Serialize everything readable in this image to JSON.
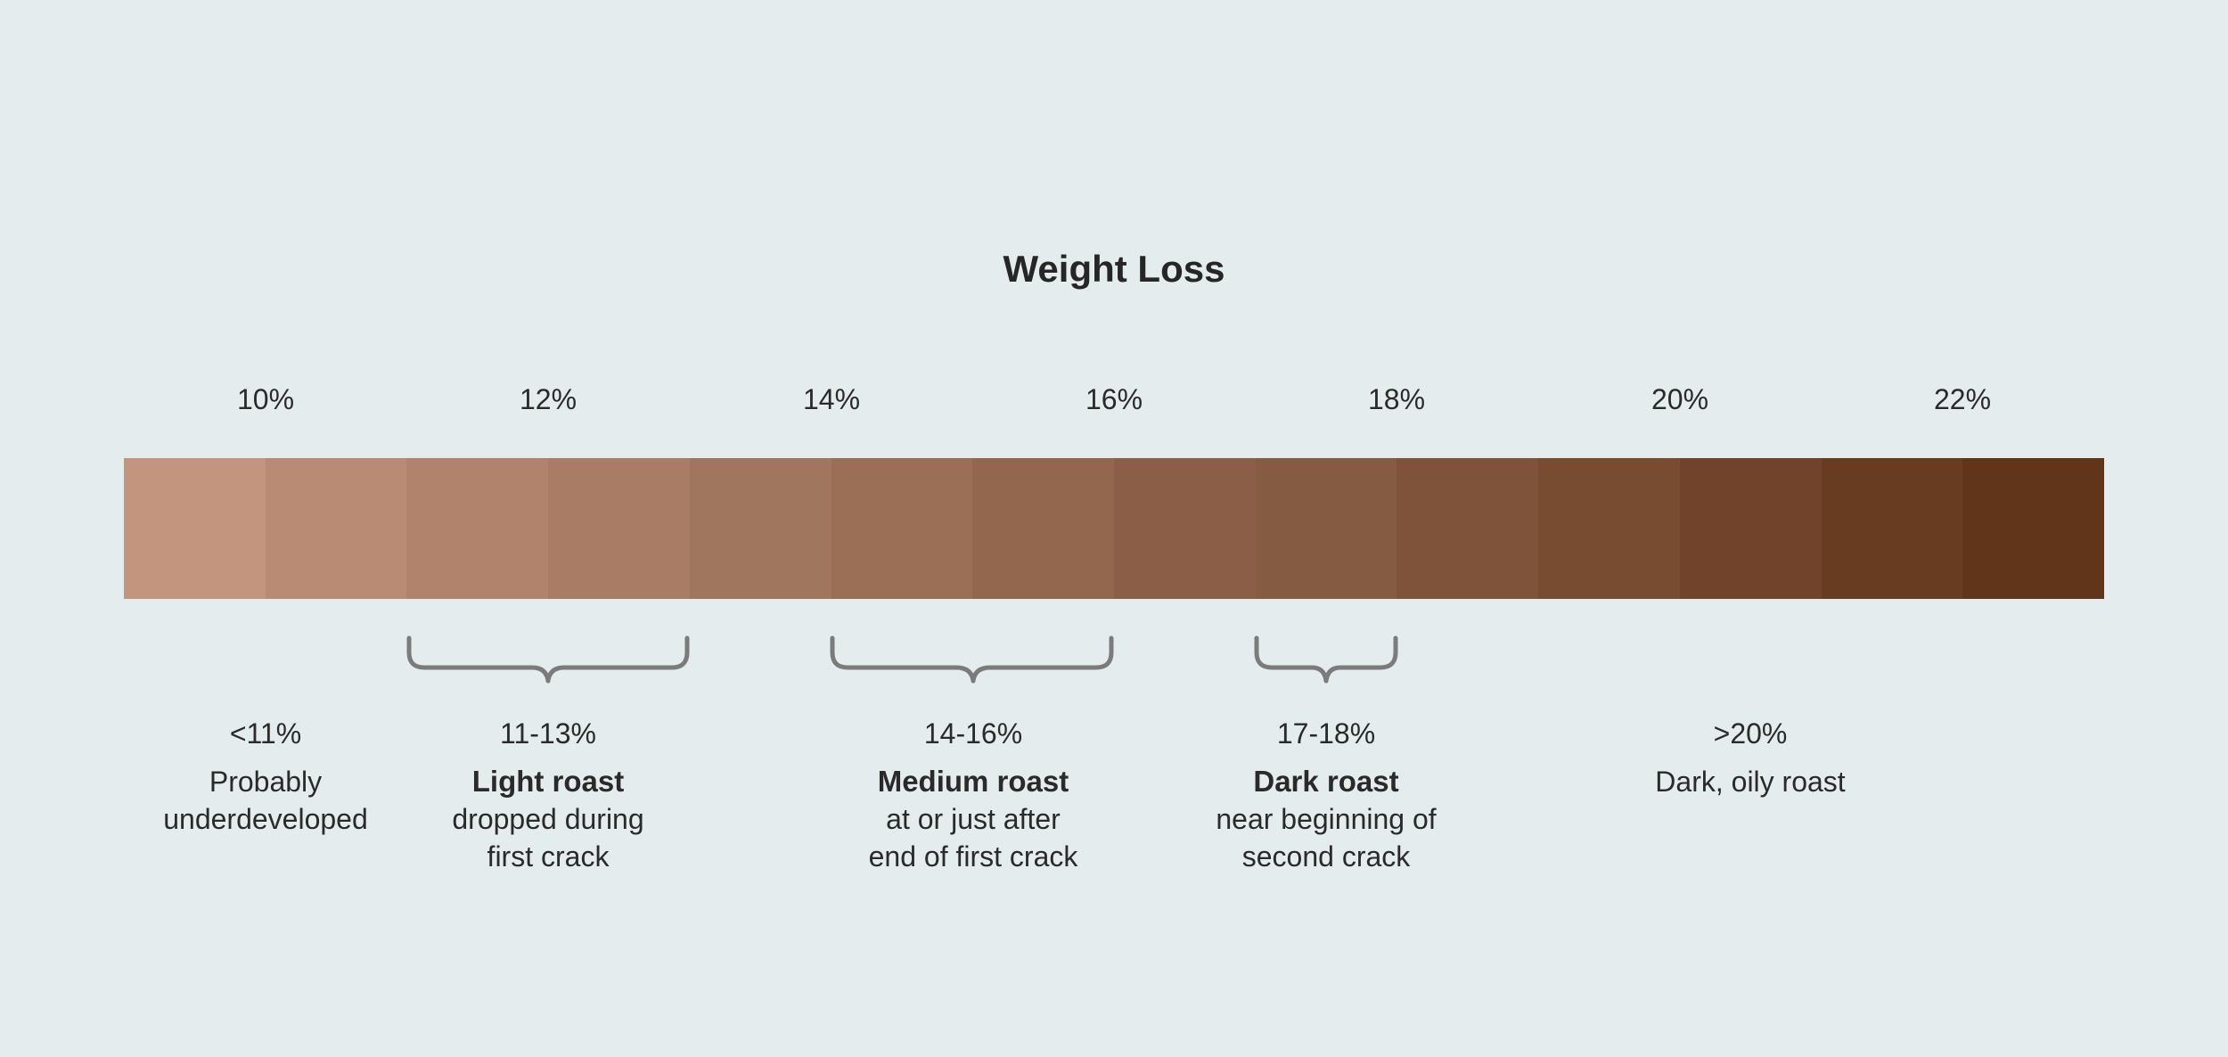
{
  "title": "Weight Loss",
  "ticks": [
    "10%",
    "12%",
    "14%",
    "16%",
    "18%",
    "20%",
    "22%"
  ],
  "swatches": [
    "#c3957f",
    "#b98b75",
    "#b1836c",
    "#a97d65",
    "#a1765e",
    "#9b6e56",
    "#93664e",
    "#8b5f47",
    "#855b41",
    "#7e5339",
    "#784c31",
    "#70432a",
    "#683c21",
    "#613519"
  ],
  "brace_color": "#7b7b7b",
  "braces": [
    {
      "name": "light-roast"
    },
    {
      "name": "medium-roast"
    },
    {
      "name": "dark-roast"
    }
  ],
  "notes": [
    {
      "range": "<11%",
      "name": "",
      "desc": "Probably\nunderdeveloped"
    },
    {
      "range": "11-13%",
      "name": "Light roast",
      "desc": "dropped during\nfirst crack"
    },
    {
      "range": "14-16%",
      "name": "Medium roast",
      "desc": "at or just after\nend of first crack"
    },
    {
      "range": "17-18%",
      "name": "Dark roast",
      "desc": "near beginning of\nsecond crack"
    },
    {
      "range": ">20%",
      "name": "",
      "desc": "Dark, oily roast"
    }
  ]
}
